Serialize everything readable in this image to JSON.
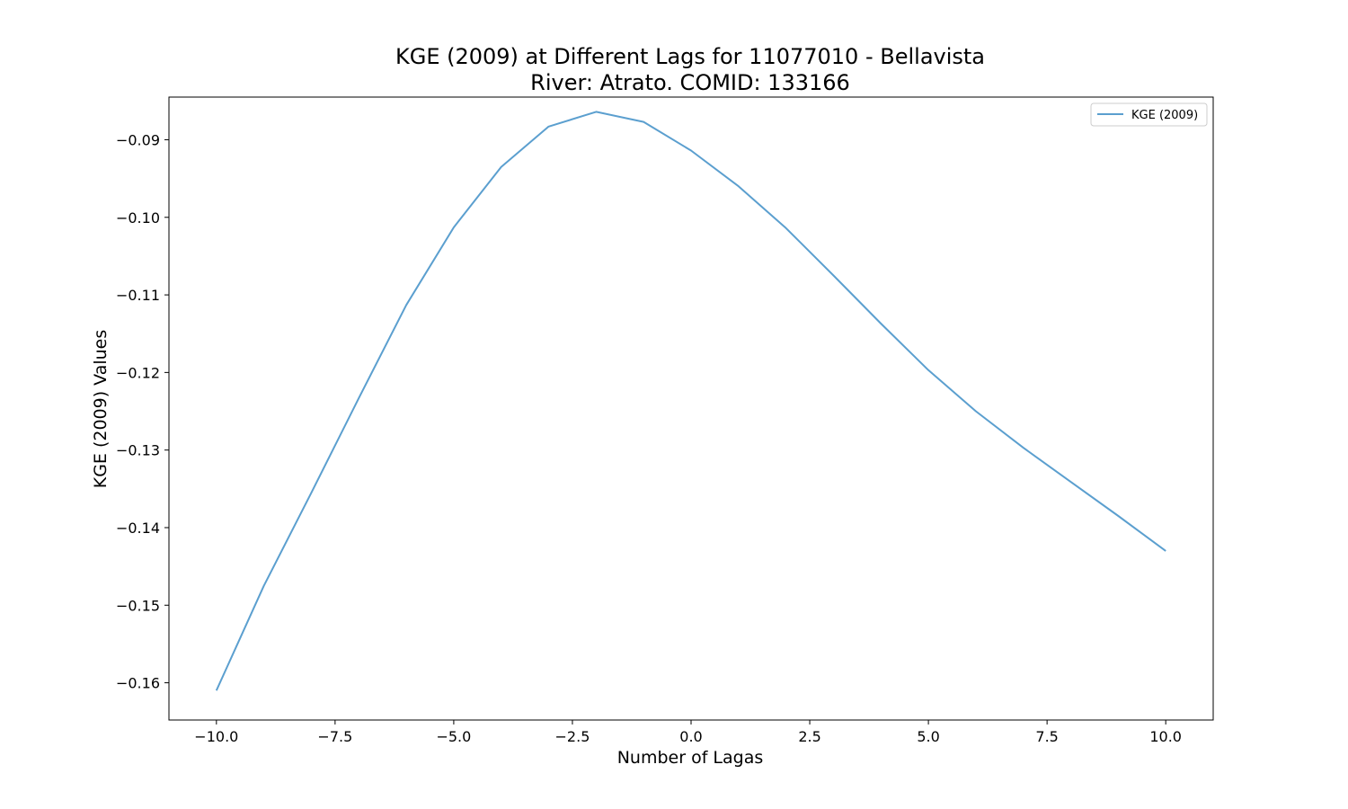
{
  "chart_data": {
    "type": "line",
    "title_line1": "KGE (2009) at Different Lags for 11077010 - Bellavista",
    "title_line2": "River: Atrato. COMID: 133166",
    "xlabel": "Number of Lagas",
    "ylabel": "KGE (2009) Values",
    "xlim": [
      -11.0,
      11.0
    ],
    "ylim": [
      -0.1648,
      -0.0845
    ],
    "xticks": [
      -10.0,
      -7.5,
      -5.0,
      -2.5,
      0.0,
      2.5,
      5.0,
      7.5,
      10.0
    ],
    "xtick_labels": [
      "−10.0",
      "−7.5",
      "−5.0",
      "−2.5",
      "0.0",
      "2.5",
      "5.0",
      "7.5",
      "10.0"
    ],
    "yticks": [
      -0.16,
      -0.15,
      -0.14,
      -0.13,
      -0.12,
      -0.11,
      -0.1,
      -0.09
    ],
    "ytick_labels": [
      "−0.16",
      "−0.15",
      "−0.14",
      "−0.13",
      "−0.12",
      "−0.11",
      "−0.10",
      "−0.09"
    ],
    "grid": false,
    "legend_position": "top-right",
    "series": [
      {
        "name": "KGE (2009)",
        "color": "#5b9fcf",
        "x": [
          -10,
          -9,
          -8,
          -7,
          -6,
          -5,
          -4,
          -3,
          -2,
          -1,
          0,
          1,
          2,
          3,
          4,
          5,
          6,
          7,
          8,
          9,
          10
        ],
        "y": [
          -0.161,
          -0.1475,
          -0.1355,
          -0.1233,
          -0.1113,
          -0.1013,
          -0.0935,
          -0.0883,
          -0.0864,
          -0.0877,
          -0.0914,
          -0.096,
          -0.1014,
          -0.1075,
          -0.1137,
          -0.1197,
          -0.125,
          -0.1297,
          -0.1341,
          -0.1385,
          -0.143
        ]
      }
    ]
  }
}
